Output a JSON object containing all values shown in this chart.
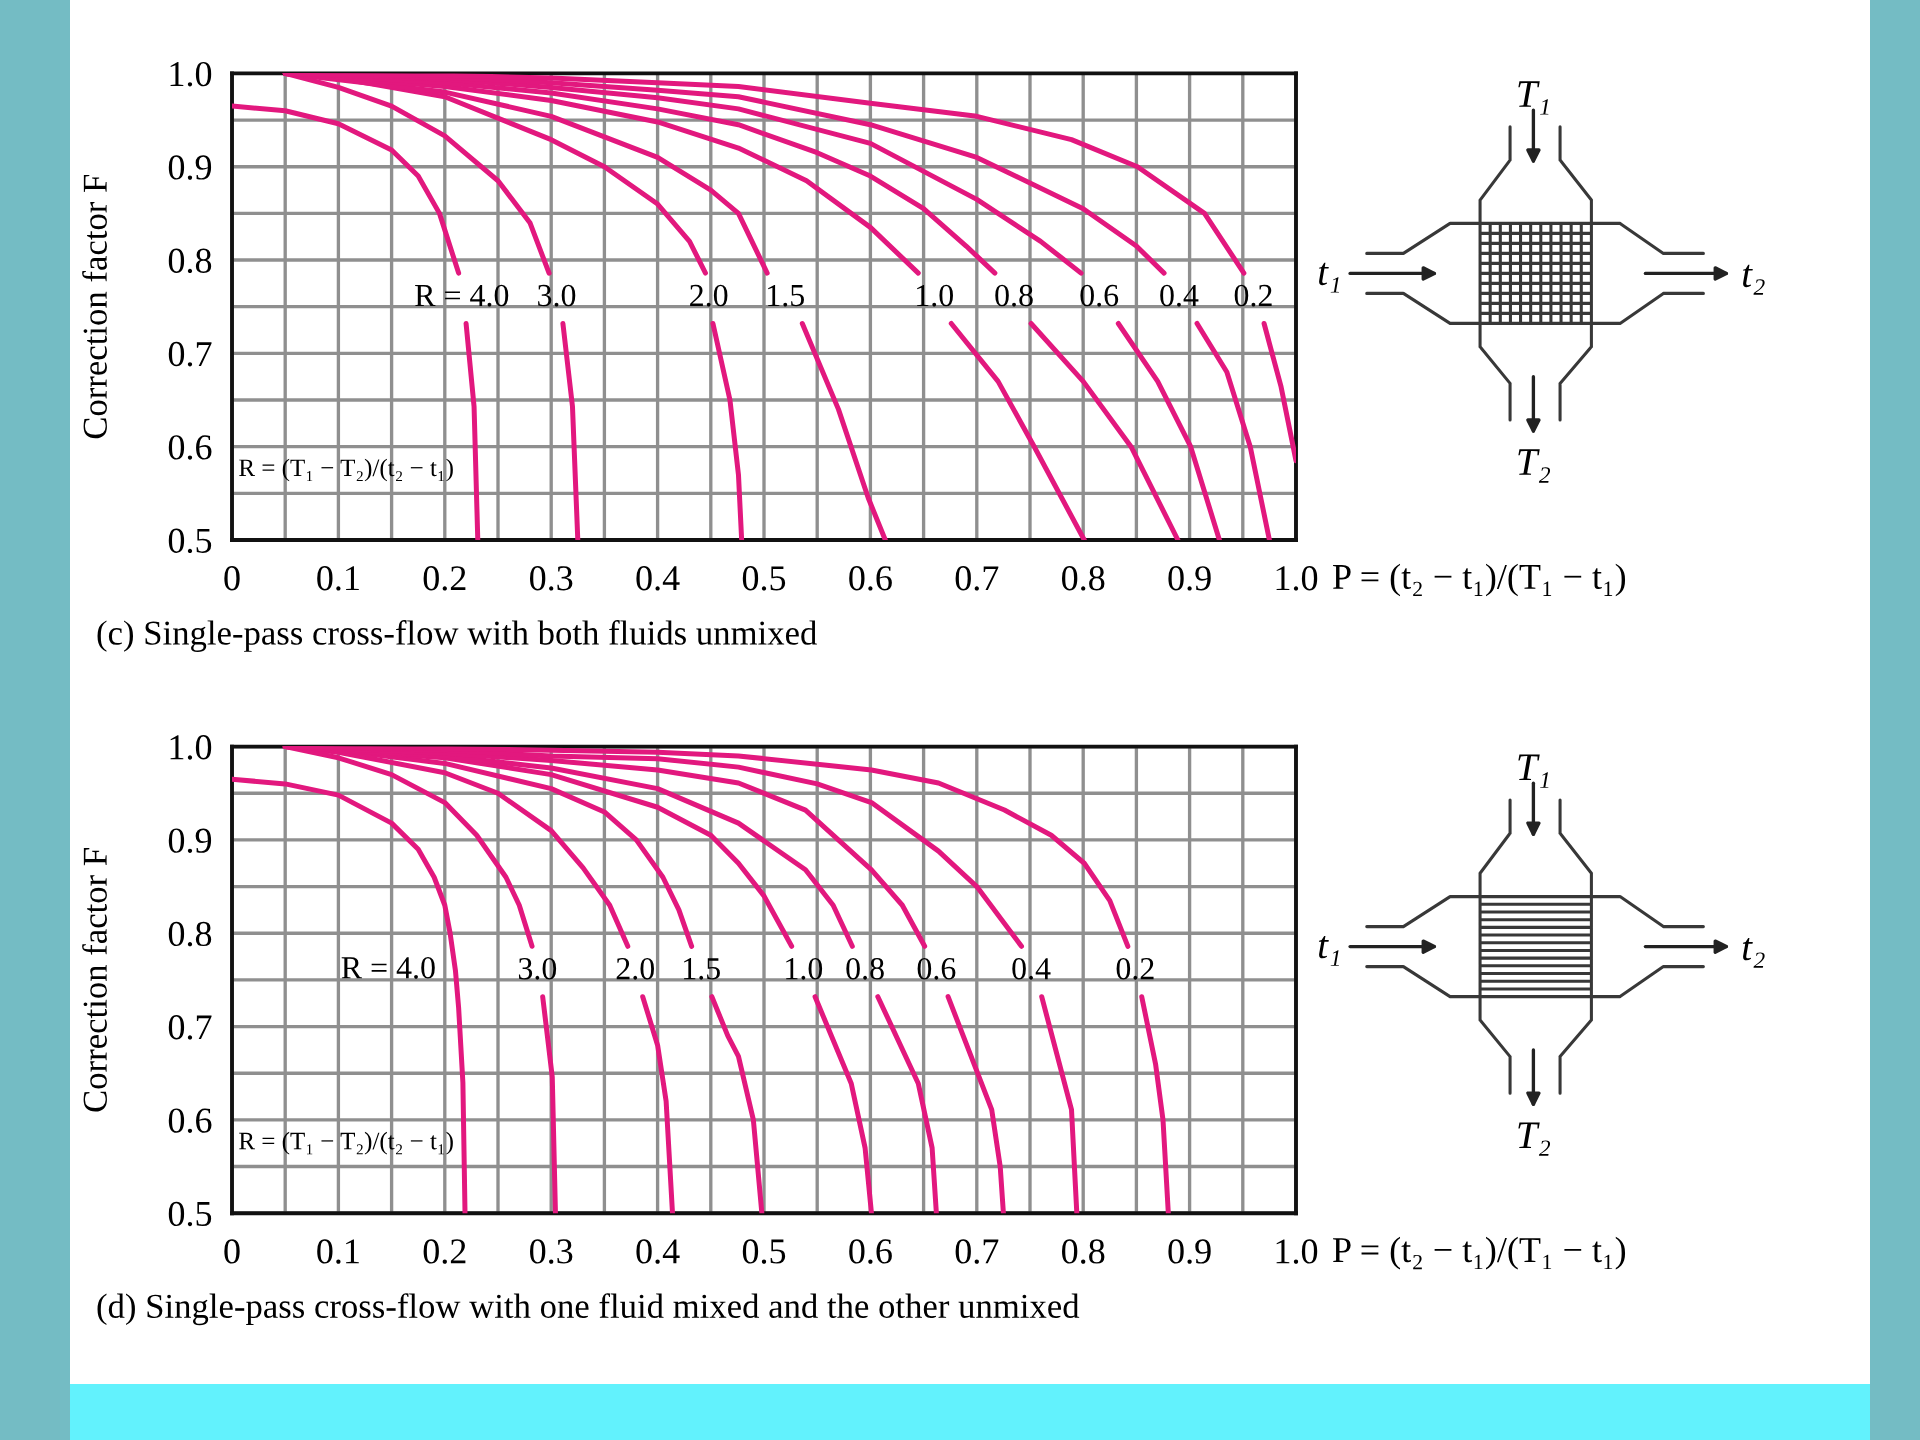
{
  "chart_data": [
    {
      "type": "line",
      "title": "(c) Single-pass cross-flow with both fluids unmixed",
      "xlabel": "P = (t₂ − t₁)/(T₁ − t₁)",
      "ylabel": "Correction factor F",
      "xlim": [
        0,
        1
      ],
      "ylim": [
        0.5,
        1
      ],
      "xticks": [
        0,
        {
          "value": 0.05,
          "label": null
        },
        0.1,
        {
          "value": 0.15,
          "label": null
        },
        0.2,
        {
          "value": 0.25,
          "label": null
        },
        0.3,
        {
          "value": 0.35,
          "label": null
        },
        0.4,
        {
          "value": 0.45,
          "label": null
        },
        0.5,
        {
          "value": 0.55,
          "label": null
        },
        0.6,
        {
          "value": 0.65,
          "label": null
        },
        0.7,
        {
          "value": 0.75,
          "label": null
        },
        0.8,
        {
          "value": 0.85,
          "label": null
        },
        0.9,
        {
          "value": 0.95,
          "label": null
        },
        {
          "value": 1,
          "label": "1.0"
        }
      ],
      "yticks": [
        0.5,
        {
          "value": 0.55,
          "label": null
        },
        0.6,
        {
          "value": 0.65,
          "label": null
        },
        0.7,
        {
          "value": 0.75,
          "label": null
        },
        0.8,
        {
          "value": 0.85,
          "label": null
        },
        0.9,
        {
          "value": 0.95,
          "label": null
        },
        {
          "value": 1,
          "label": "1.0"
        }
      ],
      "grid": true,
      "series": [
        {
          "name": "R = 4.0",
          "color": "#e2187e",
          "x": [
            0,
            0.05,
            0.1,
            0.15,
            0.175,
            0.195,
            0.213,
            0.216,
            0.22,
            0.2275,
            0.231
          ],
          "values": [
            0.965,
            0.96,
            0.946,
            0.918,
            0.89,
            0.85,
            0.786,
            null,
            0.732,
            0.643,
            0.5
          ]
        },
        {
          "name": "3.0",
          "color": "#e2187e",
          "x": [
            0.05,
            0.1,
            0.15,
            0.2,
            0.25,
            0.28,
            0.298,
            0.305,
            0.311,
            0.32,
            0.325
          ],
          "values": [
            1.0,
            0.985,
            0.965,
            0.933,
            0.885,
            0.84,
            0.786,
            null,
            0.732,
            0.643,
            0.5
          ]
        },
        {
          "name": "2.0",
          "color": "#e2187e",
          "x": [
            0.05,
            0.1,
            0.2,
            0.3,
            0.35,
            0.4,
            0.43,
            0.445,
            0.448,
            0.452,
            0.468,
            0.476,
            0.479
          ],
          "values": [
            1.0,
            0.995,
            0.975,
            0.929,
            0.9,
            0.86,
            0.82,
            0.786,
            null,
            0.732,
            0.65,
            0.57,
            0.5
          ]
        },
        {
          "name": "1.5",
          "color": "#e2187e",
          "x": [
            0.05,
            0.2,
            0.3,
            0.4,
            0.45,
            0.476,
            0.503,
            0.52,
            0.536,
            0.57,
            0.598,
            0.614
          ],
          "values": [
            1.0,
            0.98,
            0.954,
            0.91,
            0.875,
            0.85,
            0.786,
            null,
            0.732,
            0.64,
            0.545,
            0.5
          ]
        },
        {
          "name": "1.0",
          "color": "#e2187e",
          "x": [
            0.05,
            0.2,
            0.3,
            0.4,
            0.476,
            0.54,
            0.6,
            0.645,
            0.66,
            0.676,
            0.72,
            0.754,
            0.801
          ],
          "values": [
            1.0,
            0.986,
            0.971,
            0.948,
            0.92,
            0.885,
            0.835,
            0.786,
            null,
            0.732,
            0.67,
            0.6,
            0.5
          ]
        },
        {
          "name": "0.8",
          "color": "#e2187e",
          "x": [
            0.05,
            0.2,
            0.3,
            0.4,
            0.476,
            0.55,
            0.6,
            0.65,
            0.69,
            0.717,
            0.735,
            0.751,
            0.8,
            0.845,
            0.889
          ],
          "values": [
            1.0,
            0.99,
            0.979,
            0.962,
            0.945,
            0.915,
            0.89,
            0.855,
            0.815,
            0.786,
            null,
            0.732,
            0.67,
            0.6,
            0.5
          ]
        },
        {
          "name": "0.6",
          "color": "#e2187e",
          "x": [
            0.05,
            0.2,
            0.3,
            0.4,
            0.476,
            0.6,
            0.7,
            0.76,
            0.798,
            0.815,
            0.833,
            0.87,
            0.901,
            0.928
          ],
          "values": [
            1.0,
            0.994,
            0.985,
            0.974,
            0.962,
            0.925,
            0.865,
            0.82,
            0.786,
            null,
            0.732,
            0.67,
            0.6,
            0.5
          ]
        },
        {
          "name": "0.4",
          "color": "#e2187e",
          "x": [
            0.05,
            0.2,
            0.3,
            0.4,
            0.476,
            0.6,
            0.7,
            0.8,
            0.85,
            0.876,
            0.89,
            0.907,
            0.935,
            0.957,
            0.975
          ],
          "values": [
            1.0,
            0.996,
            0.99,
            0.982,
            0.975,
            0.945,
            0.91,
            0.855,
            0.815,
            0.786,
            null,
            0.732,
            0.68,
            0.6,
            0.5
          ]
        },
        {
          "name": "0.2",
          "color": "#e2187e",
          "x": [
            0.05,
            0.2,
            0.3,
            0.4,
            0.476,
            0.6,
            0.7,
            0.789,
            0.851,
            0.914,
            0.951,
            0.96,
            0.97,
            0.986,
            1.0
          ],
          "values": [
            1.0,
            0.998,
            0.995,
            0.99,
            0.986,
            0.968,
            0.954,
            0.929,
            0.9,
            0.85,
            0.786,
            null,
            0.732,
            0.664,
            0.585
          ]
        }
      ],
      "annotations": [
        "R = (T₁ − T₂)/(t₂ − t₁)",
        "T₁",
        "t₁",
        "t₂",
        "T₂"
      ]
    },
    {
      "type": "line",
      "title": "(d) Single-pass cross-flow with one fluid mixed and the other unmixed",
      "xlabel": "P = (t₂ − t₁)/(T₁ − t₁)",
      "ylabel": "Correction factor F",
      "xlim": [
        0,
        1
      ],
      "ylim": [
        0.5,
        1
      ],
      "xticks": [
        0,
        {
          "value": 0.05,
          "label": null
        },
        0.1,
        {
          "value": 0.15,
          "label": null
        },
        0.2,
        {
          "value": 0.25,
          "label": null
        },
        0.3,
        {
          "value": 0.35,
          "label": null
        },
        0.4,
        {
          "value": 0.45,
          "label": null
        },
        0.5,
        {
          "value": 0.55,
          "label": null
        },
        0.6,
        {
          "value": 0.65,
          "label": null
        },
        0.7,
        {
          "value": 0.75,
          "label": null
        },
        0.8,
        {
          "value": 0.85,
          "label": null
        },
        0.9,
        {
          "value": 0.95,
          "label": null
        },
        {
          "value": 1,
          "label": "1.0"
        }
      ],
      "yticks": [
        0.5,
        {
          "value": 0.55,
          "label": null
        },
        0.6,
        {
          "value": 0.65,
          "label": null
        },
        0.7,
        {
          "value": 0.75,
          "label": null
        },
        0.8,
        {
          "value": 0.85,
          "label": null
        },
        0.9,
        {
          "value": 0.95,
          "label": null
        },
        {
          "value": 1,
          "label": "1.0"
        }
      ],
      "grid": true,
      "series": [
        {
          "name": "R = 4.0",
          "color": "#e2187e",
          "x": [
            0,
            0.05,
            0.1,
            0.15,
            0.175,
            0.19,
            0.2,
            0.205,
            0.21,
            0.213,
            0.217,
            0.219
          ],
          "values": [
            0.965,
            0.96,
            0.948,
            0.918,
            0.89,
            0.86,
            0.83,
            0.8,
            0.76,
            0.72,
            0.64,
            0.5
          ]
        },
        {
          "name": "3.0",
          "color": "#e2187e",
          "x": [
            0.05,
            0.1,
            0.15,
            0.2,
            0.23,
            0.2575,
            0.27,
            0.282,
            0.287,
            0.292,
            0.301,
            0.304
          ],
          "values": [
            1.0,
            0.988,
            0.97,
            0.94,
            0.905,
            0.86,
            0.83,
            0.786,
            null,
            0.732,
            0.646,
            0.5
          ]
        },
        {
          "name": "2.0",
          "color": "#e2187e",
          "x": [
            0.05,
            0.1,
            0.2,
            0.25,
            0.3,
            0.33,
            0.355,
            0.372,
            0.379,
            0.386,
            0.4,
            0.408,
            0.414
          ],
          "values": [
            1.0,
            0.994,
            0.972,
            0.95,
            0.91,
            0.87,
            0.83,
            0.786,
            null,
            0.732,
            0.68,
            0.62,
            0.5
          ]
        },
        {
          "name": "1.5",
          "color": "#e2187e",
          "x": [
            0.05,
            0.1,
            0.2,
            0.3,
            0.35,
            0.38,
            0.405,
            0.42,
            0.432,
            0.441,
            0.451,
            0.466,
            0.476,
            0.49,
            0.498
          ],
          "values": [
            1.0,
            0.996,
            0.982,
            0.955,
            0.93,
            0.9,
            0.86,
            0.825,
            0.786,
            null,
            0.732,
            0.69,
            0.668,
            0.6,
            0.5
          ]
        },
        {
          "name": "1.0",
          "color": "#e2187e",
          "x": [
            0.05,
            0.2,
            0.3,
            0.4,
            0.45,
            0.476,
            0.5,
            0.526,
            0.537,
            0.548,
            0.582,
            0.595,
            0.601
          ],
          "values": [
            1.0,
            0.988,
            0.97,
            0.935,
            0.905,
            0.875,
            0.84,
            0.786,
            null,
            0.732,
            0.639,
            0.57,
            0.5
          ]
        },
        {
          "name": "0.8",
          "color": "#e2187e",
          "x": [
            0.05,
            0.2,
            0.3,
            0.4,
            0.476,
            0.539,
            0.565,
            0.583,
            0.595,
            0.607,
            0.645,
            0.658,
            0.662
          ],
          "values": [
            1.0,
            0.99,
            0.977,
            0.955,
            0.918,
            0.868,
            0.83,
            0.786,
            null,
            0.732,
            0.639,
            0.57,
            0.5
          ]
        },
        {
          "name": "0.6",
          "color": "#e2187e",
          "x": [
            0.05,
            0.2,
            0.3,
            0.4,
            0.476,
            0.539,
            0.601,
            0.63,
            0.651,
            0.662,
            0.673,
            0.714,
            0.722,
            0.725
          ],
          "values": [
            1.0,
            0.993,
            0.985,
            0.975,
            0.961,
            0.932,
            0.868,
            0.83,
            0.786,
            null,
            0.732,
            0.611,
            0.55,
            0.5
          ]
        },
        {
          "name": "0.4",
          "color": "#e2187e",
          "x": [
            0.05,
            0.2,
            0.3,
            0.4,
            0.476,
            0.55,
            0.601,
            0.664,
            0.7,
            0.742,
            0.751,
            0.761,
            0.789,
            0.794
          ],
          "values": [
            1.0,
            0.996,
            0.99,
            0.987,
            0.978,
            0.96,
            0.94,
            0.888,
            0.85,
            0.786,
            null,
            0.732,
            0.611,
            0.5
          ]
        },
        {
          "name": "0.2",
          "color": "#e2187e",
          "x": [
            0.05,
            0.2,
            0.3,
            0.4,
            0.476,
            0.601,
            0.664,
            0.726,
            0.77,
            0.801,
            0.825,
            0.842,
            0.849,
            0.855,
            0.868,
            0.875,
            0.88
          ],
          "values": [
            1.0,
            0.998,
            0.996,
            0.994,
            0.99,
            0.975,
            0.961,
            0.932,
            0.905,
            0.875,
            0.835,
            0.786,
            null,
            0.732,
            0.66,
            0.6,
            0.5
          ]
        }
      ],
      "annotations": [
        "R = (T₁ − T₂)/(t₂ − t₁)",
        "T₁",
        "t₁",
        "t₂",
        "T₂"
      ]
    }
  ]
}
